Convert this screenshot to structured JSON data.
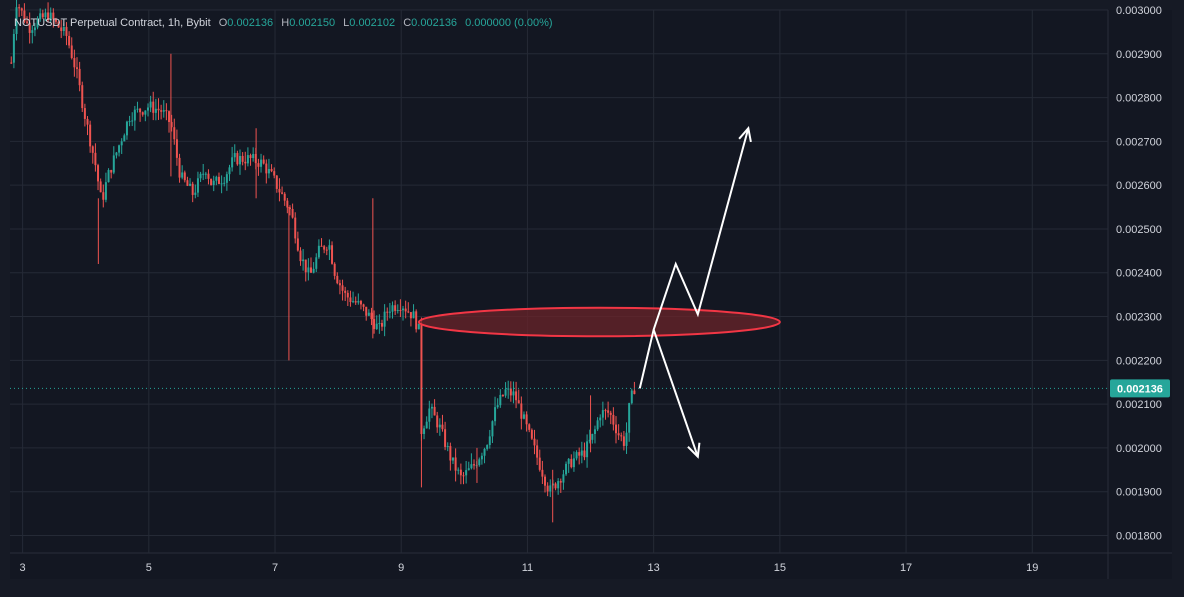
{
  "header": {
    "symbol": "NOTUSDT Perpetual Contract, 1h, Bybit",
    "o_label": "O",
    "o_value": "0.002136",
    "h_label": "H",
    "h_value": "0.002150",
    "l_label": "L",
    "l_value": "0.002102",
    "c_label": "C",
    "c_value": "0.002136",
    "change": "0.000000 (0.00%)"
  },
  "price_tag": "0.002136",
  "colors": {
    "background": "#161a25",
    "plot_background": "#131722",
    "grid": "#252a36",
    "up": "#26a69a",
    "down": "#ef5350",
    "zone_fill": "#6b2429",
    "zone_stroke": "#f23645",
    "arrows": "#ffffff",
    "axis_text": "#d1d4dc"
  },
  "chart_data": {
    "type": "candlestick",
    "title": "NOTUSDT Perpetual Contract, 1h, Bybit",
    "ylim": [
      0.00176,
      0.003
    ],
    "y_ticks": [
      "0.001800",
      "0.001900",
      "0.002000",
      "0.002100",
      "0.002200",
      "0.002300",
      "0.002400",
      "0.002500",
      "0.002600",
      "0.002700",
      "0.002800",
      "0.002900",
      "0.003000"
    ],
    "x_ticks": [
      "3",
      "5",
      "7",
      "9",
      "11",
      "13",
      "15",
      "17",
      "19"
    ],
    "xlim_days": [
      2.8,
      20.2
    ],
    "last_price": 0.002136,
    "price_path": [
      [
        2.82,
        0.00288
      ],
      [
        2.9,
        0.00302
      ],
      [
        3.1,
        0.00296
      ],
      [
        3.4,
        0.00299
      ],
      [
        3.7,
        0.00294
      ],
      [
        3.85,
        0.00286
      ],
      [
        4.0,
        0.00275
      ],
      [
        4.15,
        0.00265
      ],
      [
        4.25,
        0.00256
      ],
      [
        4.35,
        0.00262
      ],
      [
        4.5,
        0.00268
      ],
      [
        4.7,
        0.00276
      ],
      [
        5.0,
        0.00278
      ],
      [
        5.2,
        0.00277
      ],
      [
        5.35,
        0.00274
      ],
      [
        5.5,
        0.00262
      ],
      [
        5.7,
        0.00258
      ],
      [
        5.9,
        0.00264
      ],
      [
        6.0,
        0.0026
      ],
      [
        6.2,
        0.00262
      ],
      [
        6.35,
        0.00266
      ],
      [
        6.6,
        0.00266
      ],
      [
        6.8,
        0.00265
      ],
      [
        6.95,
        0.00262
      ],
      [
        7.1,
        0.00258
      ],
      [
        7.25,
        0.00254
      ],
      [
        7.4,
        0.00244
      ],
      [
        7.55,
        0.00239
      ],
      [
        7.7,
        0.00245
      ],
      [
        7.85,
        0.00247
      ],
      [
        7.95,
        0.0024
      ],
      [
        8.1,
        0.00235
      ],
      [
        8.3,
        0.00233
      ],
      [
        8.5,
        0.0023
      ],
      [
        8.65,
        0.00227
      ],
      [
        8.8,
        0.00232
      ],
      [
        9.0,
        0.00233
      ],
      [
        9.2,
        0.0023
      ],
      [
        9.3,
        0.00226
      ],
      [
        9.32,
        0.00204
      ],
      [
        9.45,
        0.00209
      ],
      [
        9.6,
        0.00205
      ],
      [
        9.8,
        0.00197
      ],
      [
        9.95,
        0.00193
      ],
      [
        10.15,
        0.00196
      ],
      [
        10.35,
        0.00201
      ],
      [
        10.5,
        0.00209
      ],
      [
        10.65,
        0.00213
      ],
      [
        10.8,
        0.00212
      ],
      [
        10.95,
        0.00206
      ],
      [
        11.1,
        0.002
      ],
      [
        11.25,
        0.00194
      ],
      [
        11.35,
        0.0019
      ],
      [
        11.5,
        0.00193
      ],
      [
        11.7,
        0.00197
      ],
      [
        11.9,
        0.00199
      ],
      [
        12.05,
        0.00203
      ],
      [
        12.15,
        0.00208
      ],
      [
        12.3,
        0.00208
      ],
      [
        12.45,
        0.00203
      ],
      [
        12.55,
        0.00201
      ],
      [
        12.62,
        0.0021
      ],
      [
        12.7,
        0.00214
      ]
    ],
    "spikes": [
      {
        "x": 4.2,
        "high": 0.00257,
        "low": 0.00242
      },
      {
        "x": 5.35,
        "high": 0.0029,
        "low": 0.00262
      },
      {
        "x": 6.7,
        "high": 0.00273,
        "low": 0.00257
      },
      {
        "x": 7.22,
        "high": 0.00255,
        "low": 0.0022
      },
      {
        "x": 8.55,
        "high": 0.00257,
        "low": 0.00225
      },
      {
        "x": 9.32,
        "high": 0.00227,
        "low": 0.00191
      },
      {
        "x": 10.2,
        "high": 0.002,
        "low": 0.00192
      },
      {
        "x": 11.4,
        "high": 0.00195,
        "low": 0.00183
      },
      {
        "x": 12.0,
        "high": 0.00212,
        "low": 0.00199
      }
    ],
    "zone": {
      "x_start": 9.28,
      "x_end": 15.0,
      "price_low": 0.002255,
      "price_high": 0.00232,
      "shape": "ellipse"
    },
    "projection_up": [
      [
        12.78,
        0.002136
      ],
      [
        13.0,
        0.00227
      ],
      [
        13.35,
        0.00242
      ],
      [
        13.7,
        0.002305
      ],
      [
        14.5,
        0.00273
      ]
    ],
    "projection_down": [
      [
        13.0,
        0.00227
      ],
      [
        13.7,
        0.00198
      ]
    ]
  }
}
